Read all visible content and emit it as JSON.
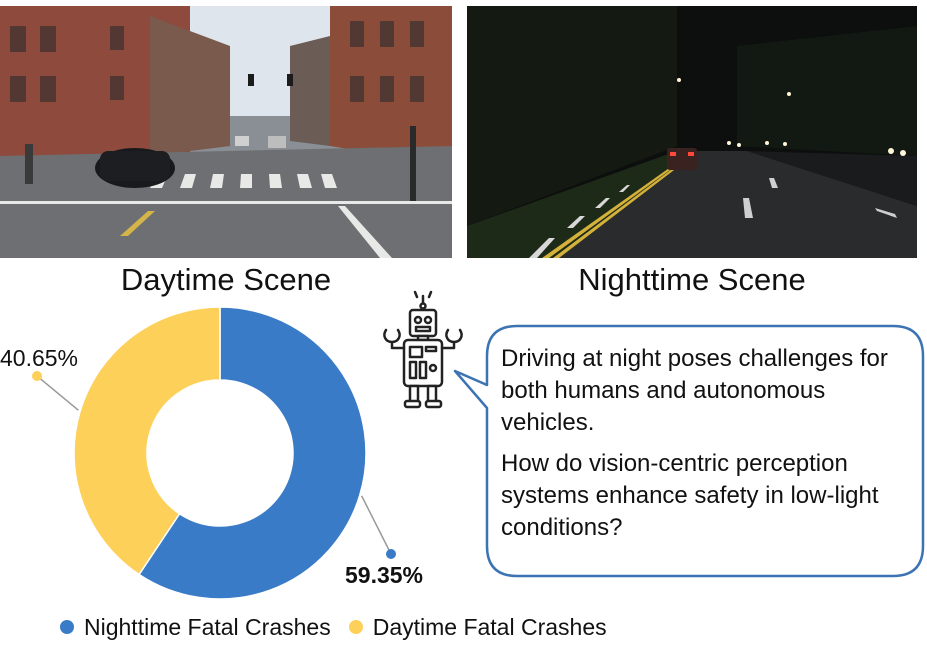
{
  "photos": {
    "day_caption": "Daytime Scene",
    "night_caption": "Nighttime Scene"
  },
  "speech": {
    "paragraph_1": "Driving at night poses challenges for both humans and autonomous vehicles.",
    "paragraph_2": "How do vision-centric perception systems enhance safety in low-light conditions?"
  },
  "colors": {
    "night": "#3a7bc8",
    "day": "#fdd05a",
    "bubble_border": "#3c74b3"
  },
  "chart_data": {
    "type": "pie",
    "style": "donut",
    "categories": [
      "Nighttime Fatal Crashes",
      "Daytime Fatal Crashes"
    ],
    "values": [
      59.35,
      40.65
    ],
    "labels": [
      "59.35%",
      "40.65%"
    ],
    "legend": [
      "Nighttime Fatal Crashes",
      "Daytime Fatal Crashes"
    ],
    "legend_position": "bottom",
    "start": "top",
    "direction": "clockwise"
  }
}
